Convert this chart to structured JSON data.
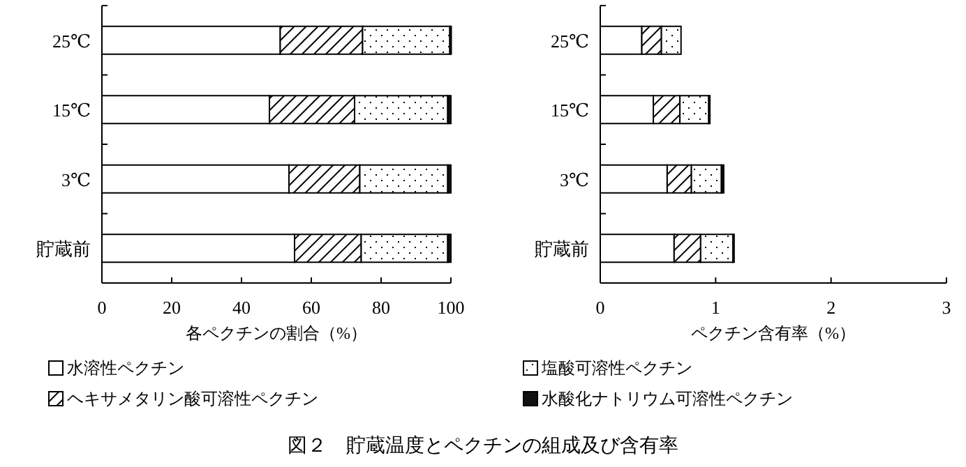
{
  "chart_data": [
    {
      "type": "bar",
      "orientation": "horizontal",
      "stacked": true,
      "categories": [
        "25℃",
        "15℃",
        "3℃",
        "貯蔵前"
      ],
      "xlabel": "各ペクチンの割合（%）",
      "xlim": [
        0,
        100
      ],
      "xticks": [
        0,
        20,
        40,
        60,
        80,
        100
      ],
      "legend": "bottom",
      "annotations": [
        "図２　貯蔵温度とペクチンの組成及び含有率"
      ],
      "series": [
        {
          "name": "水溶性ペクチン",
          "color": "#ffffff",
          "values": [
            51.1,
            48,
            53.6,
            55.2
          ]
        },
        {
          "name": "ヘキサメタリン酸可溶性ペクチン",
          "color": "#000000",
          "values": [
            23.6,
            24.4,
            20.3,
            19.1
          ]
        },
        {
          "name": "塩酸可溶性ペクチン",
          "color": "#000000",
          "values": [
            25,
            26.7,
            25.2,
            24.8
          ]
        },
        {
          "name": "水酸化ナトリウム可溶性ペクチン",
          "color": "#111111",
          "values": [
            0.4,
            0.9,
            0.9,
            0.9
          ]
        }
      ]
    },
    {
      "type": "bar",
      "orientation": "horizontal",
      "stacked": true,
      "categories": [
        "25℃",
        "15℃",
        "3℃",
        "貯蔵前"
      ],
      "xlabel": "ペクチン含有率（%）",
      "xlim": [
        0,
        3
      ],
      "xticks": [
        0,
        1,
        2,
        3
      ],
      "series": [
        {
          "color": "#ffffff",
          "values": [
            0.36,
            0.46,
            0.58,
            0.64
          ]
        },
        {
          "color": "#000000",
          "values": [
            0.17,
            0.23,
            0.21,
            0.23
          ]
        },
        {
          "color": "#000000",
          "values": [
            0.17,
            0.25,
            0.26,
            0.28
          ]
        },
        {
          "color": "#111111",
          "values": [
            null,
            0.01,
            0.02,
            0.01
          ]
        }
      ]
    }
  ]
}
